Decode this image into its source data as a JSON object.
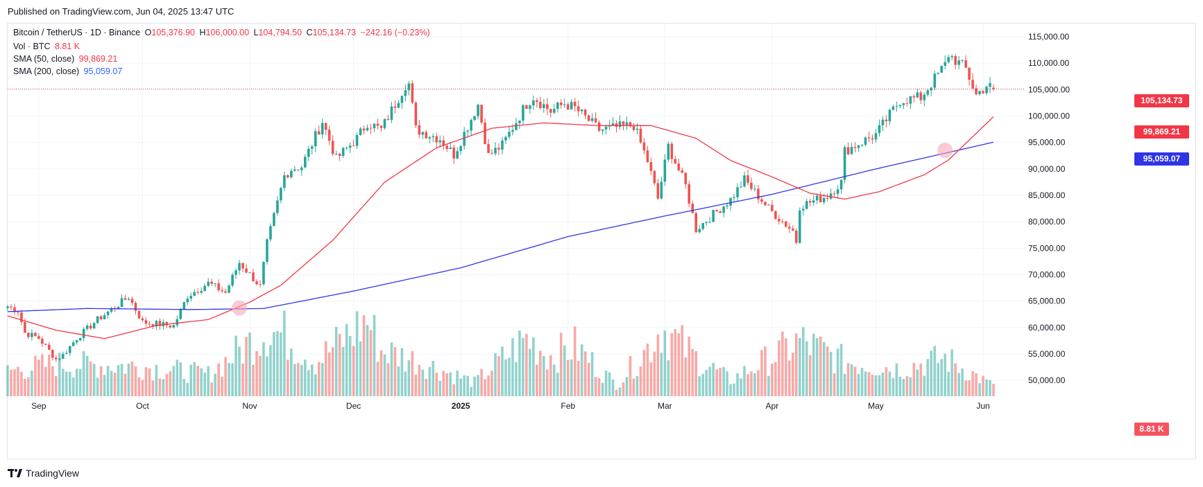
{
  "header": {
    "published": "Published on TradingView.com, Jun 04, 2025 13:47 UTC"
  },
  "legend": {
    "symbol": "Bitcoin / TetherUS · 1D · Binance",
    "open_label": "O",
    "open": "105,376.90",
    "high_label": "H",
    "high": "106,000.00",
    "low_label": "L",
    "low": "104,794.50",
    "close_label": "C",
    "close": "105,134.73",
    "change": "−242.16 (−0.23%)",
    "vol_label": "Vol · BTC",
    "vol_value": "8.81 K",
    "sma50_label": "SMA (50, close)",
    "sma50_value": "99,869.21",
    "sma200_label": "SMA (200, close)",
    "sma200_value": "95,059.07"
  },
  "price_tags": {
    "last": "105,134.73",
    "sma50": "99,869.21",
    "sma200": "95,059.07",
    "volume": "8.81 K"
  },
  "footer": {
    "brand": "TradingView"
  },
  "colors": {
    "up": "#26a69a",
    "down": "#ef5350",
    "sma50": "#f23645",
    "sma200": "#2f34e6",
    "grid": "#f0f3fa"
  },
  "chart_data": {
    "type": "candlestick",
    "y_axis": {
      "side": "right",
      "ticks": [
        50000,
        55000,
        60000,
        65000,
        70000,
        75000,
        80000,
        85000,
        90000,
        95000,
        100000,
        105000,
        110000,
        115000
      ],
      "tick_labels": [
        "50,000.00",
        "55,000.00",
        "60,000.00",
        "65,000.00",
        "70,000.00",
        "75,000.00",
        "80,000.00",
        "85,000.00",
        "90,000.00",
        "95,000.00",
        "100,000.00",
        "105,000.00",
        "110,000.00",
        "115,000.00"
      ],
      "range": [
        47000,
        117500
      ]
    },
    "x_axis": {
      "labels": [
        "Sep",
        "Oct",
        "Nov",
        "Dec",
        "2025",
        "Feb",
        "Mar",
        "Apr",
        "May",
        "Jun"
      ],
      "label_dates": [
        "2024-09-01",
        "2024-10-01",
        "2024-11-01",
        "2024-12-01",
        "2025-01-01",
        "2025-02-01",
        "2025-03-01",
        "2025-04-01",
        "2025-05-01",
        "2025-06-01"
      ],
      "start_date": "2024-08-23",
      "end_date": "2025-06-04",
      "bold_label": "2025"
    },
    "close_anchors": [
      [
        "2024-08-23",
        64000
      ],
      [
        "2024-08-26",
        63200
      ],
      [
        "2024-08-28",
        59000
      ],
      [
        "2024-09-01",
        58000
      ],
      [
        "2024-09-06",
        54000
      ],
      [
        "2024-09-08",
        54800
      ],
      [
        "2024-09-12",
        58000
      ],
      [
        "2024-09-18",
        61500
      ],
      [
        "2024-09-27",
        65800
      ],
      [
        "2024-10-01",
        61000
      ],
      [
        "2024-10-10",
        60300
      ],
      [
        "2024-10-14",
        66000
      ],
      [
        "2024-10-20",
        68400
      ],
      [
        "2024-10-25",
        66600
      ],
      [
        "2024-10-29",
        72300
      ],
      [
        "2024-11-04",
        67800
      ],
      [
        "2024-11-06",
        75900
      ],
      [
        "2024-11-11",
        88700
      ],
      [
        "2024-11-13",
        90000
      ],
      [
        "2024-11-16",
        90500
      ],
      [
        "2024-11-22",
        99000
      ],
      [
        "2024-11-26",
        91900
      ],
      [
        "2024-12-02",
        95800
      ],
      [
        "2024-12-05",
        98800
      ],
      [
        "2024-12-09",
        97400
      ],
      [
        "2024-12-16",
        106000
      ],
      [
        "2024-12-17",
        106100
      ],
      [
        "2024-12-19",
        97500
      ],
      [
        "2024-12-26",
        95700
      ],
      [
        "2024-12-30",
        92700
      ],
      [
        "2025-01-06",
        102200
      ],
      [
        "2025-01-09",
        92500
      ],
      [
        "2025-01-13",
        94500
      ],
      [
        "2025-01-20",
        102300
      ],
      [
        "2025-01-22",
        103700
      ],
      [
        "2025-01-27",
        100900
      ],
      [
        "2025-01-31",
        102400
      ],
      [
        "2025-02-03",
        101500
      ],
      [
        "2025-02-10",
        97400
      ],
      [
        "2025-02-20",
        98300
      ],
      [
        "2025-02-24",
        91500
      ],
      [
        "2025-02-27",
        84400
      ],
      [
        "2025-03-02",
        94300
      ],
      [
        "2025-03-07",
        86800
      ],
      [
        "2025-03-10",
        78600
      ],
      [
        "2025-03-20",
        84200
      ],
      [
        "2025-03-24",
        88000
      ],
      [
        "2025-03-31",
        82500
      ],
      [
        "2025-04-07",
        78300
      ],
      [
        "2025-04-08",
        76300
      ],
      [
        "2025-04-09",
        83000
      ],
      [
        "2025-04-17",
        84900
      ],
      [
        "2025-04-21",
        87500
      ],
      [
        "2025-04-22",
        93400
      ],
      [
        "2025-05-01",
        96500
      ],
      [
        "2025-05-08",
        103000
      ],
      [
        "2025-05-14",
        103500
      ],
      [
        "2025-05-21",
        109700
      ],
      [
        "2025-05-22",
        111700
      ],
      [
        "2025-05-27",
        108900
      ],
      [
        "2025-05-30",
        104000
      ],
      [
        "2025-06-02",
        105800
      ],
      [
        "2025-06-04",
        105134.73
      ]
    ],
    "ohlc_last": {
      "date": "2025-06-04",
      "open": 105376.9,
      "high": 106000.0,
      "low": 104794.5,
      "close": 105134.73
    },
    "sma_50_anchors": [
      [
        "2024-08-23",
        62200
      ],
      [
        "2024-09-06",
        59500
      ],
      [
        "2024-09-20",
        57900
      ],
      [
        "2024-10-05",
        60400
      ],
      [
        "2024-10-20",
        61500
      ],
      [
        "2024-11-01",
        64800
      ],
      [
        "2024-11-10",
        68000
      ],
      [
        "2024-11-25",
        76500
      ],
      [
        "2024-12-10",
        87500
      ],
      [
        "2024-12-25",
        94000
      ],
      [
        "2025-01-10",
        97700
      ],
      [
        "2025-01-25",
        98700
      ],
      [
        "2025-02-10",
        98200
      ],
      [
        "2025-02-25",
        98200
      ],
      [
        "2025-03-10",
        95800
      ],
      [
        "2025-03-20",
        91600
      ],
      [
        "2025-04-01",
        88500
      ],
      [
        "2025-04-12",
        85400
      ],
      [
        "2025-04-22",
        84300
      ],
      [
        "2025-05-02",
        85700
      ],
      [
        "2025-05-15",
        88900
      ],
      [
        "2025-05-22",
        91700
      ],
      [
        "2025-06-04",
        99869.21
      ]
    ],
    "sma_200_anchors": [
      [
        "2024-08-23",
        63000
      ],
      [
        "2024-09-15",
        63600
      ],
      [
        "2024-10-15",
        63400
      ],
      [
        "2024-11-05",
        63600
      ],
      [
        "2024-12-01",
        66900
      ],
      [
        "2025-01-01",
        71300
      ],
      [
        "2025-02-01",
        77200
      ],
      [
        "2025-03-01",
        81100
      ],
      [
        "2025-04-01",
        85200
      ],
      [
        "2025-05-01",
        90000
      ],
      [
        "2025-06-04",
        95059.07
      ]
    ],
    "sma_cross_markers": [
      {
        "date": "2024-10-29",
        "price": 63700
      },
      {
        "date": "2025-05-21",
        "price": 93500
      }
    ],
    "volume_anchors": [
      [
        "2024-08-23",
        22000
      ],
      [
        "2024-09-06",
        28000
      ],
      [
        "2024-10-01",
        26000
      ],
      [
        "2024-10-20",
        19000
      ],
      [
        "2024-11-06",
        58000
      ],
      [
        "2024-11-11",
        53000
      ],
      [
        "2024-11-20",
        30000
      ],
      [
        "2024-12-05",
        66000
      ],
      [
        "2024-12-09",
        40000
      ],
      [
        "2024-12-20",
        30000
      ],
      [
        "2025-01-05",
        12000
      ],
      [
        "2025-01-20",
        50000
      ],
      [
        "2025-01-27",
        35000
      ],
      [
        "2025-02-03",
        43000
      ],
      [
        "2025-02-15",
        10000
      ],
      [
        "2025-02-25",
        45000
      ],
      [
        "2025-02-28",
        60000
      ],
      [
        "2025-03-10",
        33000
      ],
      [
        "2025-03-20",
        14000
      ],
      [
        "2025-04-07",
        44000
      ],
      [
        "2025-04-09",
        48000
      ],
      [
        "2025-04-22",
        30000
      ],
      [
        "2025-05-08",
        24000
      ],
      [
        "2025-05-21",
        33000
      ],
      [
        "2025-06-04",
        8810
      ]
    ],
    "volume_axis_max": 66000
  }
}
